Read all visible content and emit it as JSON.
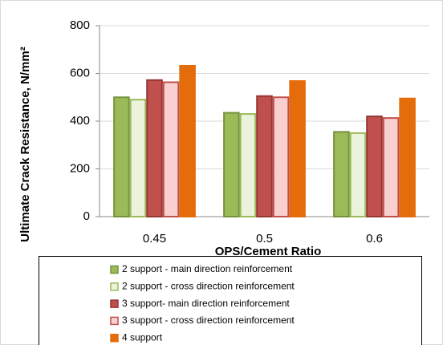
{
  "chart_data": {
    "type": "bar",
    "y_label": "Ultimate Crack Resistance, N/mm²",
    "x_label": "OPS/Cement  Ratio",
    "categories": [
      "0.45",
      "0.5",
      "0.6"
    ],
    "series": [
      {
        "name": "2 support - main direction reinforcement",
        "color": "#9bbb59",
        "edgecolor": "#76923c",
        "values": [
          500,
          435,
          355
        ]
      },
      {
        "name": "2 support - cross direction reinforcement",
        "color": "#ecf3dc",
        "edgecolor": "#9bbb59",
        "values": [
          490,
          430,
          350
        ]
      },
      {
        "name": "3 support- main direction reinforcement",
        "color": "#c0504d",
        "edgecolor": "#943634",
        "values": [
          572,
          505,
          420
        ]
      },
      {
        "name": "3 support - cross direction reinforcement",
        "color": "#f9d0d0",
        "edgecolor": "#c0504d",
        "values": [
          563,
          500,
          413
        ]
      },
      {
        "name": "4 support",
        "color": "#e46c0a",
        "edgecolor": "#e46c0a",
        "values": [
          632,
          568,
          495
        ]
      }
    ],
    "ylim": [
      0,
      800
    ],
    "yticks": [
      0,
      200,
      400,
      600,
      800
    ],
    "grid": true
  }
}
